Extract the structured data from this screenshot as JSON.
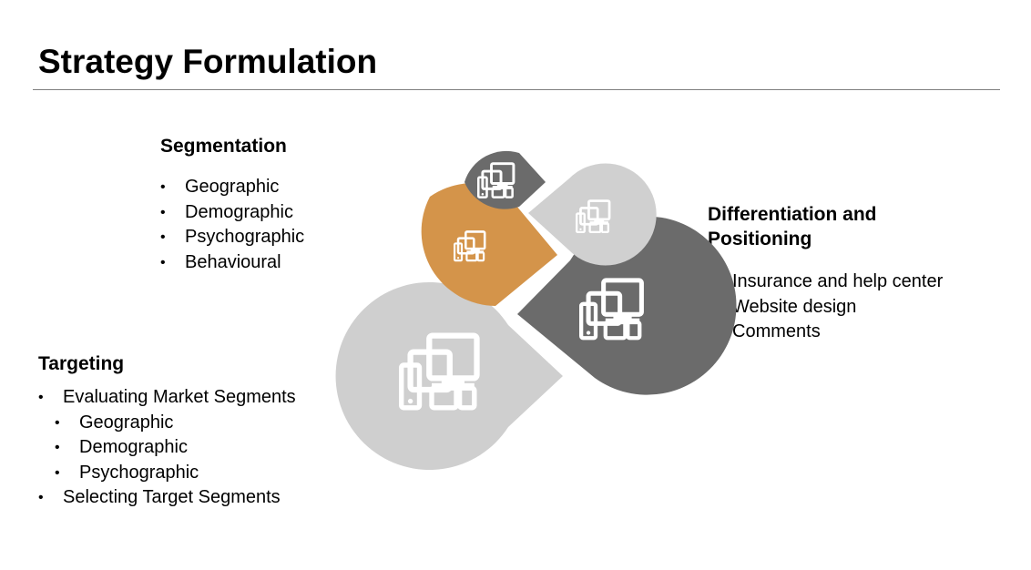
{
  "title": "Strategy Formulation",
  "segmentation": {
    "heading": "Segmentation",
    "items": [
      "Geographic",
      "Demographic",
      "Psychographic",
      "Behavioural"
    ]
  },
  "targeting": {
    "heading": "Targeting",
    "items": [
      {
        "label": "Evaluating Market Segments",
        "subitems": [
          "Geographic",
          "Demographic",
          "Psychographic"
        ]
      },
      {
        "label": "Selecting Target Segments"
      }
    ]
  },
  "differentiation": {
    "heading_line1": "Differentiation and",
    "heading_line2": "Positioning",
    "items": [
      "Insurance and help center",
      "Website design",
      "Comments"
    ]
  },
  "diagram": {
    "petals": [
      {
        "name": "petal-top-small",
        "color": "#6b6b6b",
        "icon": "devices-icon"
      },
      {
        "name": "petal-top-right",
        "color": "#d0d0d0",
        "icon": "devices-icon"
      },
      {
        "name": "petal-orange",
        "color": "#d4944a",
        "icon": "devices-icon"
      },
      {
        "name": "petal-dark-large",
        "color": "#6b6b6b",
        "icon": "devices-icon"
      },
      {
        "name": "petal-light-large",
        "color": "#cfcfcf",
        "icon": "devices-icon"
      }
    ],
    "icon_color": "#ffffff"
  }
}
